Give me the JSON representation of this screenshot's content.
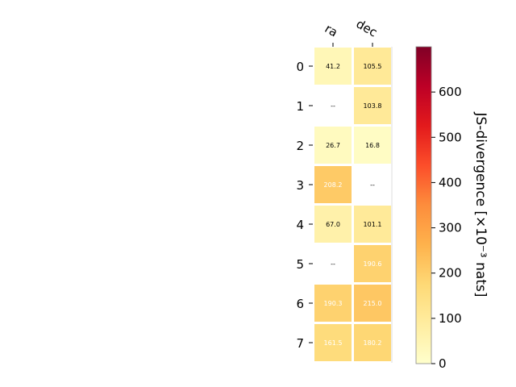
{
  "chart_data": {
    "type": "heatmap",
    "columns": [
      "ra",
      "dec"
    ],
    "rows": [
      "0",
      "1",
      "2",
      "3",
      "4",
      "5",
      "6",
      "7"
    ],
    "values": [
      [
        41.2,
        105.5
      ],
      [
        null,
        103.8
      ],
      [
        26.7,
        16.8
      ],
      [
        208.2,
        null
      ],
      [
        67.0,
        101.1
      ],
      [
        null,
        190.6
      ],
      [
        190.3,
        215.0
      ],
      [
        161.5,
        180.2
      ]
    ],
    "cell_labels": [
      [
        "41.2",
        "105.5"
      ],
      [
        "--",
        "103.8"
      ],
      [
        "26.7",
        "16.8"
      ],
      [
        "208.2",
        "--"
      ],
      [
        "67.0",
        "101.1"
      ],
      [
        "--",
        "190.6"
      ],
      [
        "190.3",
        "215.0"
      ],
      [
        "161.5",
        "180.2"
      ]
    ],
    "colorbar": {
      "label": "JS-divergence [×10⁻³ nats]",
      "min": 0,
      "max": 700,
      "ticks": [
        "0",
        "100",
        "200",
        "300",
        "400",
        "500",
        "600"
      ],
      "colormap": "YlOrRd"
    }
  }
}
